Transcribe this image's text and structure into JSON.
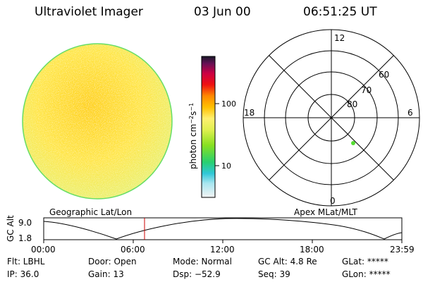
{
  "header": {
    "title": "Ultraviolet Imager",
    "date": "03 Jun 00",
    "time": "06:51:25 UT"
  },
  "colorbar": {
    "label_html": "photon cm<tspan baseline-shift=\"super\" font-size=\"8\">−2</tspan>s<tspan baseline-shift=\"super\" font-size=\"8\">−1</tspan>",
    "tick_100": "100",
    "tick_10": "10"
  },
  "polar": {
    "mlt_top": "12",
    "mlt_left": "18",
    "mlt_right": "6",
    "mlt_bottom": "0",
    "lat_60": "60",
    "lat_70": "70",
    "lat_80": "80"
  },
  "plot": {
    "left_title": "Geographic Lat/Lon",
    "right_title": "Apex MLat/MLT",
    "ylabel": "GC Alt",
    "y_top": "9.0",
    "y_bottom": "1.8",
    "x_ticks": [
      "00:00",
      "06:00",
      "12:00",
      "18:00",
      "23:59"
    ]
  },
  "info": {
    "filter": "Flt: LBHL",
    "door": "Door: Open",
    "mode": "Mode: Normal",
    "gc_alt": "GC Alt: 4.8 Re",
    "glat": "GLat: *****",
    "ip": "IP: 36.0",
    "gain": "Gain: 13",
    "dsp": "Dsp:  −52.9",
    "seq": "Seq: 39",
    "glon": "GLon: *****"
  },
  "colors": {
    "accent_red": "#cc0000",
    "marker_green": "#55dd33"
  }
}
